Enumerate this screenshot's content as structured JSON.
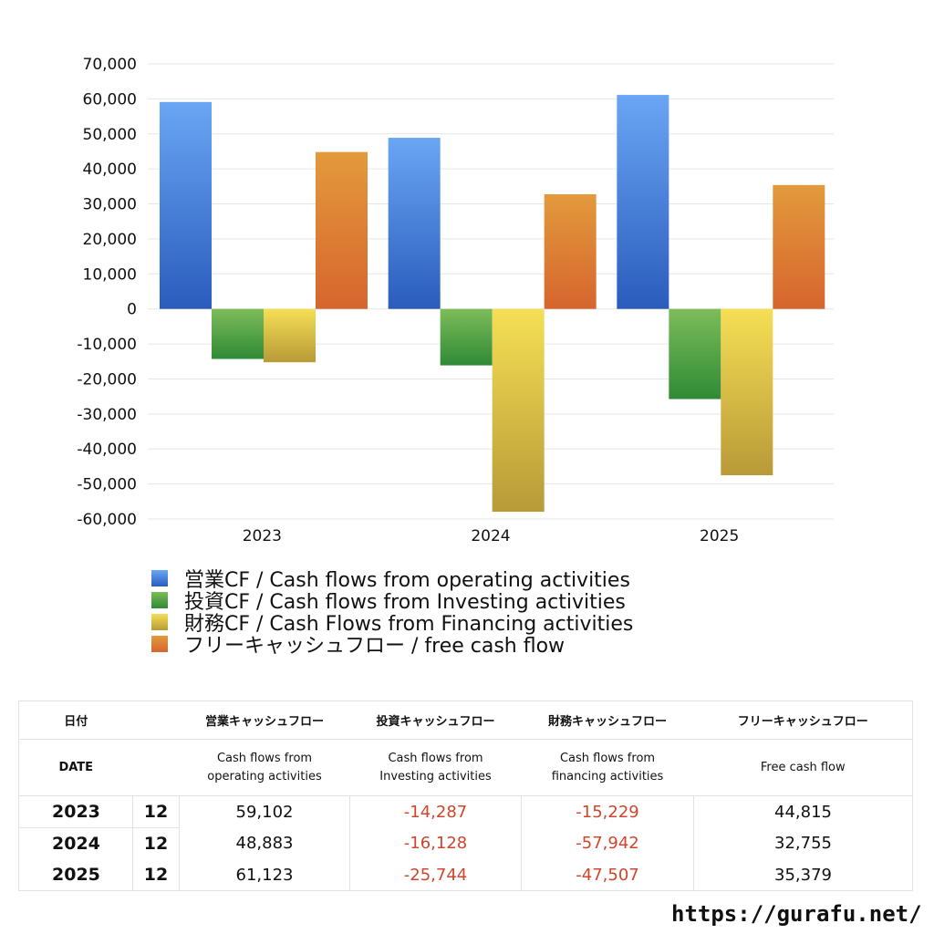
{
  "chart_data": {
    "type": "bar",
    "categories": [
      "2023",
      "2024",
      "2025"
    ],
    "series": [
      {
        "name": "営業CF / Cash flows from operating activities",
        "values": [
          59102,
          48883,
          61123
        ],
        "color_top": "#6aa6f4",
        "color_bottom": "#2a5cbc"
      },
      {
        "name": "投資CF / Cash flows from Investing activities",
        "values": [
          -14287,
          -16128,
          -25744
        ],
        "color_top": "#7dbc5a",
        "color_bottom": "#2f8a36"
      },
      {
        "name": "財務CF / Cash Flows from Financing activities",
        "values": [
          -15229,
          -57942,
          -47507
        ],
        "color_top": "#f5df55",
        "color_bottom": "#b89a38"
      },
      {
        "name": "フリーキャッシュフロー / free cash flow",
        "values": [
          44815,
          32755,
          35379
        ],
        "color_top": "#e39a3c",
        "color_bottom": "#d6652e"
      }
    ],
    "ylim": [
      -60000,
      70000
    ],
    "yticks": [
      70000,
      60000,
      50000,
      40000,
      30000,
      20000,
      10000,
      0,
      -10000,
      -20000,
      -30000,
      -40000,
      -50000,
      -60000
    ],
    "ytick_labels": [
      "70,000",
      "60,000",
      "50,000",
      "40,000",
      "30,000",
      "20,000",
      "10,000",
      "0",
      "-10,000",
      "-20,000",
      "-30,000",
      "-40,000",
      "-50,000",
      "-60,000"
    ],
    "grid": true,
    "legend_position": "bottom"
  },
  "table": {
    "header_jp": {
      "date": "日付",
      "operating": "営業キャッシュフロー",
      "investing": "投資キャッシュフロー",
      "financing": "財務キャッシュフロー",
      "free": "フリーキャッシュフロー"
    },
    "header_en": {
      "date": "DATE",
      "operating_1": "Cash flows from",
      "operating_2": "operating activities",
      "investing_1": "Cash flows from",
      "investing_2": "Investing activities",
      "financing_1": "Cash flows from",
      "financing_2": "financing activities",
      "free": "Free cash flow"
    },
    "rows": [
      {
        "year": "2023",
        "month": "12",
        "operating": "59,102",
        "investing": "-14,287",
        "financing": "-15,229",
        "free": "44,815"
      },
      {
        "year": "2024",
        "month": "12",
        "operating": "48,883",
        "investing": "-16,128",
        "financing": "-57,942",
        "free": "32,755"
      },
      {
        "year": "2025",
        "month": "12",
        "operating": "61,123",
        "investing": "-25,744",
        "financing": "-47,507",
        "free": "35,379"
      }
    ],
    "negative_color": "#d0452c"
  },
  "footer": {
    "url": "https://gurafu.net/"
  }
}
